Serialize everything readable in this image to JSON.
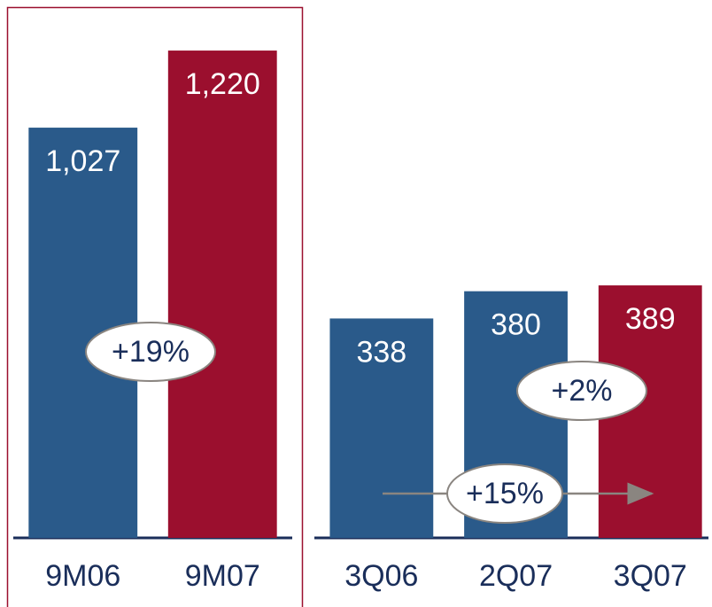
{
  "chart_data": [
    {
      "type": "bar",
      "categories": [
        "9M06",
        "9M07"
      ],
      "values": [
        1027,
        1220
      ],
      "value_labels": [
        "1,027",
        "1,220"
      ],
      "colors": [
        "#2a5a8a",
        "#9b0f2e"
      ],
      "ylim": [
        0,
        1300
      ],
      "annotations": [
        {
          "text": "+19%"
        }
      ]
    },
    {
      "type": "bar",
      "categories": [
        "3Q06",
        "2Q07",
        "3Q07"
      ],
      "values": [
        338,
        380,
        389
      ],
      "value_labels": [
        "338",
        "380",
        "389"
      ],
      "colors": [
        "#2a5a8a",
        "#2a5a8a",
        "#9b0f2e"
      ],
      "ylim": [
        0,
        800
      ],
      "annotations": [
        {
          "text": "+2%"
        },
        {
          "text": "+15%"
        }
      ]
    }
  ]
}
